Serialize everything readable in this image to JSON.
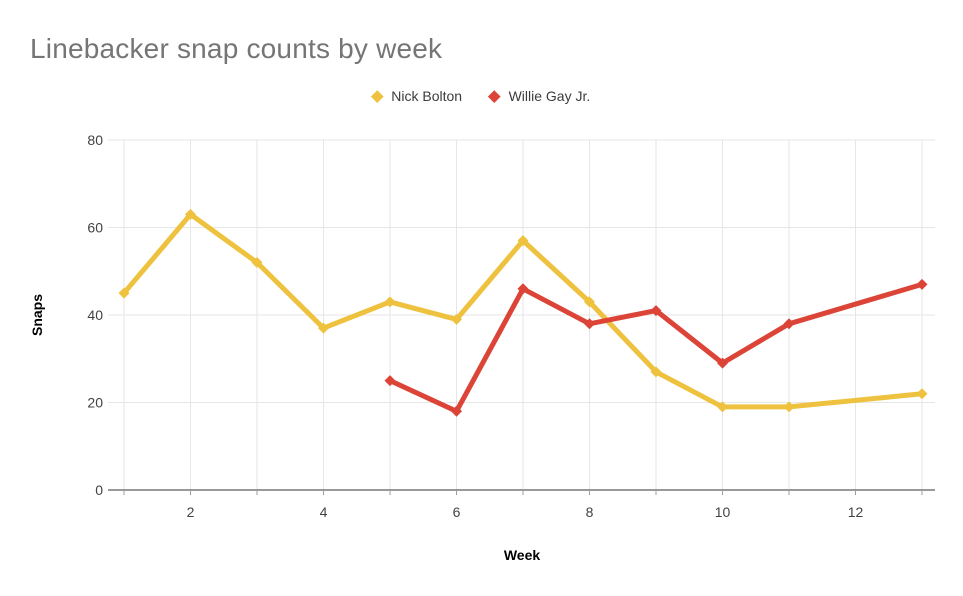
{
  "chart_data": {
    "type": "line",
    "title": "Linebacker snap counts by week",
    "xlabel": "Week",
    "ylabel": "Snaps",
    "weeks": [
      1,
      2,
      3,
      4,
      5,
      6,
      7,
      8,
      9,
      10,
      11,
      12,
      13
    ],
    "x_tick_labels": [
      2,
      4,
      6,
      8,
      10,
      12
    ],
    "y_ticks": [
      0,
      20,
      40,
      60,
      80
    ],
    "ylim": [
      0,
      80
    ],
    "grid": true,
    "legend_position": "top-center",
    "marker": "diamond",
    "series": [
      {
        "name": "Nick Bolton",
        "color": "#EEC23E",
        "points": [
          [
            1,
            45
          ],
          [
            2,
            63
          ],
          [
            3,
            52
          ],
          [
            4,
            37
          ],
          [
            5,
            43
          ],
          [
            6,
            39
          ],
          [
            7,
            57
          ],
          [
            8,
            43
          ],
          [
            9,
            27
          ],
          [
            10,
            19
          ],
          [
            11,
            19
          ],
          [
            13,
            22
          ]
        ]
      },
      {
        "name": "Willie Gay Jr.",
        "color": "#DC4437",
        "points": [
          [
            5,
            25
          ],
          [
            6,
            18
          ],
          [
            7,
            46
          ],
          [
            8,
            38
          ],
          [
            9,
            41
          ],
          [
            10,
            29
          ],
          [
            11,
            38
          ],
          [
            13,
            47
          ]
        ]
      }
    ],
    "colors": {
      "title": "#757575",
      "tick_label": "#424242",
      "axis_line": "#333333",
      "gridline": "#e6e6e6"
    }
  }
}
